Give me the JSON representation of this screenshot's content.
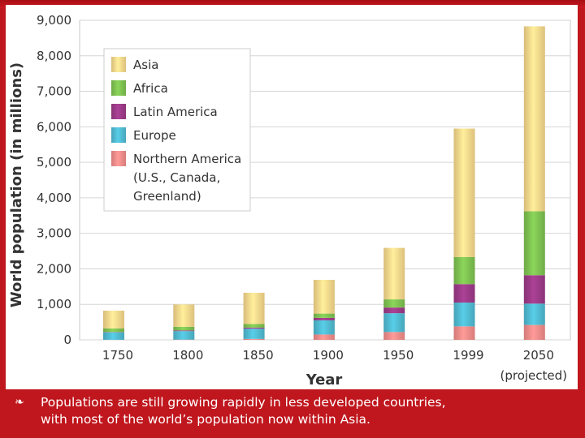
{
  "chart_data": {
    "type": "bar",
    "stacked": true,
    "title": "",
    "xlabel": "Year",
    "ylabel": "World population (in millions)",
    "categories": [
      "1750",
      "1800",
      "1850",
      "1900",
      "1950",
      "1999",
      "2050"
    ],
    "category_note": "(projected)",
    "ylim": [
      0,
      9000
    ],
    "yticks": [
      "0",
      "1,000",
      "2,000",
      "3,000",
      "4,000",
      "5,000",
      "6,000",
      "7,000",
      "8,000",
      "9,000"
    ],
    "ytick_values": [
      0,
      1000,
      2000,
      3000,
      4000,
      5000,
      6000,
      7000,
      8000,
      9000
    ],
    "grid": true,
    "legend_position": "top-left",
    "series": [
      {
        "name": "Northern America (U.S., Canada, Greenland)",
        "name_lines": [
          "Northern America",
          "(U.S., Canada,",
          "Greenland)"
        ],
        "color": "#ef8a88",
        "values": [
          2,
          7,
          26,
          150,
          220,
          380,
          420
        ]
      },
      {
        "name": "Europe",
        "name_lines": [
          "Europe"
        ],
        "color": "#4fb8cf",
        "values": [
          210,
          240,
          290,
          400,
          530,
          670,
          600
        ]
      },
      {
        "name": "Latin America",
        "name_lines": [
          "Latin America"
        ],
        "color": "#9a3a86",
        "values": [
          10,
          20,
          30,
          70,
          160,
          520,
          800
        ]
      },
      {
        "name": "Africa",
        "name_lines": [
          "Africa"
        ],
        "color": "#7cbf50",
        "values": [
          100,
          100,
          100,
          120,
          230,
          760,
          1800
        ]
      },
      {
        "name": "Asia",
        "name_lines": [
          "Asia"
        ],
        "color": "#f6d58a",
        "values": [
          500,
          630,
          880,
          950,
          1450,
          3620,
          5210
        ]
      }
    ]
  },
  "caption": {
    "bullet_icon": "bullet-icon",
    "text_line1": "Populations are still growing rapidly in less developed countries,",
    "text_line2": "with most of the world’s population now within Asia."
  }
}
